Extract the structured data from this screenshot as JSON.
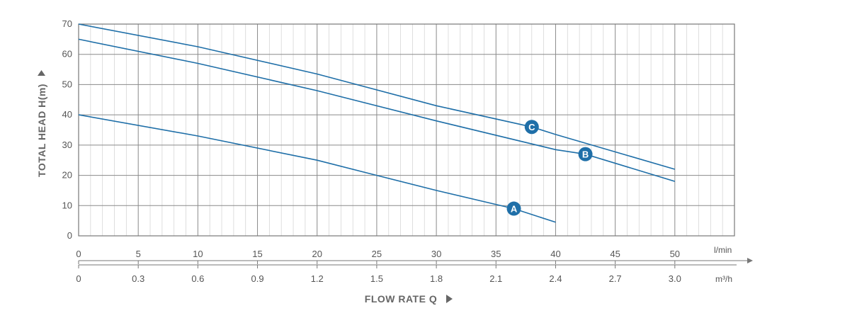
{
  "chart_data": {
    "type": "line",
    "ylabel": "TOTAL HEAD H(m)",
    "xlabel": "FLOW RATE Q",
    "xunit_primary": "l/min",
    "xunit_secondary": "m³/h",
    "xlim": [
      0,
      55
    ],
    "ylim": [
      0,
      70
    ],
    "yticks": [
      "0",
      "10",
      "20",
      "30",
      "40",
      "50",
      "60",
      "70"
    ],
    "xticks_lmin": [
      "0",
      "5",
      "10",
      "15",
      "20",
      "25",
      "30",
      "35",
      "40",
      "45",
      "50"
    ],
    "xticks_m3h": [
      "0",
      "0.3",
      "0.6",
      "0.9",
      "1.2",
      "1.5",
      "1.8",
      "2.1",
      "2.4",
      "2.7",
      "3.0"
    ],
    "grid": true,
    "series": [
      {
        "name": "A",
        "x": [
          0,
          10,
          20,
          25,
          30,
          36.5,
          40
        ],
        "y": [
          40,
          33,
          25,
          20,
          15,
          9,
          4.5
        ],
        "label_at": [
          36.5,
          9
        ]
      },
      {
        "name": "B",
        "x": [
          0,
          10,
          20,
          30,
          40,
          42.5,
          50
        ],
        "y": [
          65,
          57,
          48,
          38,
          28.5,
          27,
          18
        ],
        "label_at": [
          42.5,
          27
        ]
      },
      {
        "name": "C",
        "x": [
          0,
          10,
          20,
          30,
          38,
          40,
          50
        ],
        "y": [
          70,
          62.5,
          53.5,
          43,
          36,
          33.5,
          22
        ],
        "label_at": [
          38,
          36
        ]
      }
    ],
    "line_color": "#1f6fa8",
    "badge_color": "#1f6fa8"
  }
}
